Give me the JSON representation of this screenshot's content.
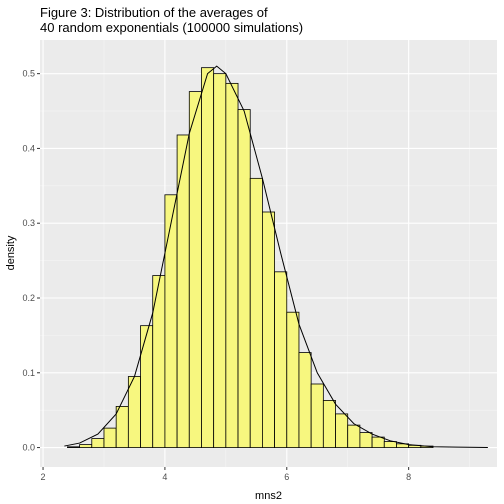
{
  "chart_data": {
    "type": "bar",
    "title_lines": [
      "Figure 3: Distribution of the averages of",
      "40 random exponentials (100000 simulations)"
    ],
    "xlabel": "mns2",
    "ylabel": "density",
    "xlim": [
      1.95,
      9.45
    ],
    "ylim": [
      -0.026,
      0.545
    ],
    "x_ticks": [
      2,
      4,
      6,
      8
    ],
    "y_ticks": [
      0.0,
      0.1,
      0.2,
      0.3,
      0.4,
      0.5
    ],
    "y_tick_labels": [
      "0.0",
      "0.1",
      "0.2",
      "0.3",
      "0.4",
      "0.5"
    ],
    "grid": true,
    "bin_width": 0.2,
    "bin_starts": [
      2.4,
      2.6,
      2.8,
      3.0,
      3.2,
      3.4,
      3.6,
      3.8,
      4.0,
      4.2,
      4.4,
      4.6,
      4.8,
      5.0,
      5.2,
      5.4,
      5.6,
      5.8,
      6.0,
      6.2,
      6.4,
      6.6,
      6.8,
      7.0,
      7.2,
      7.4,
      7.6,
      7.8,
      8.0,
      8.2
    ],
    "densities": [
      0.001,
      0.004,
      0.012,
      0.026,
      0.055,
      0.095,
      0.163,
      0.23,
      0.338,
      0.418,
      0.476,
      0.508,
      0.5,
      0.487,
      0.452,
      0.36,
      0.315,
      0.235,
      0.181,
      0.127,
      0.085,
      0.063,
      0.045,
      0.03,
      0.02,
      0.014,
      0.008,
      0.005,
      0.003,
      0.002
    ],
    "density_curve": {
      "x": [
        2.35,
        2.6,
        2.9,
        3.2,
        3.5,
        3.8,
        4.1,
        4.4,
        4.7,
        4.85,
        5.0,
        5.3,
        5.6,
        5.9,
        6.2,
        6.5,
        6.8,
        7.1,
        7.4,
        7.7,
        8.0,
        8.4,
        8.8,
        9.3
      ],
      "y": [
        0.002,
        0.006,
        0.018,
        0.045,
        0.095,
        0.18,
        0.3,
        0.42,
        0.5,
        0.51,
        0.5,
        0.45,
        0.36,
        0.26,
        0.165,
        0.1,
        0.058,
        0.032,
        0.018,
        0.009,
        0.004,
        0.001,
        0.0005,
        0.0001
      ]
    },
    "colors": {
      "panel_bg": "#ebebeb",
      "grid_major": "#ffffff",
      "grid_minor": "#f5f5f5",
      "bar_fill": "#f7f77f",
      "bar_stroke": "#000000",
      "curve": "#000000"
    }
  }
}
